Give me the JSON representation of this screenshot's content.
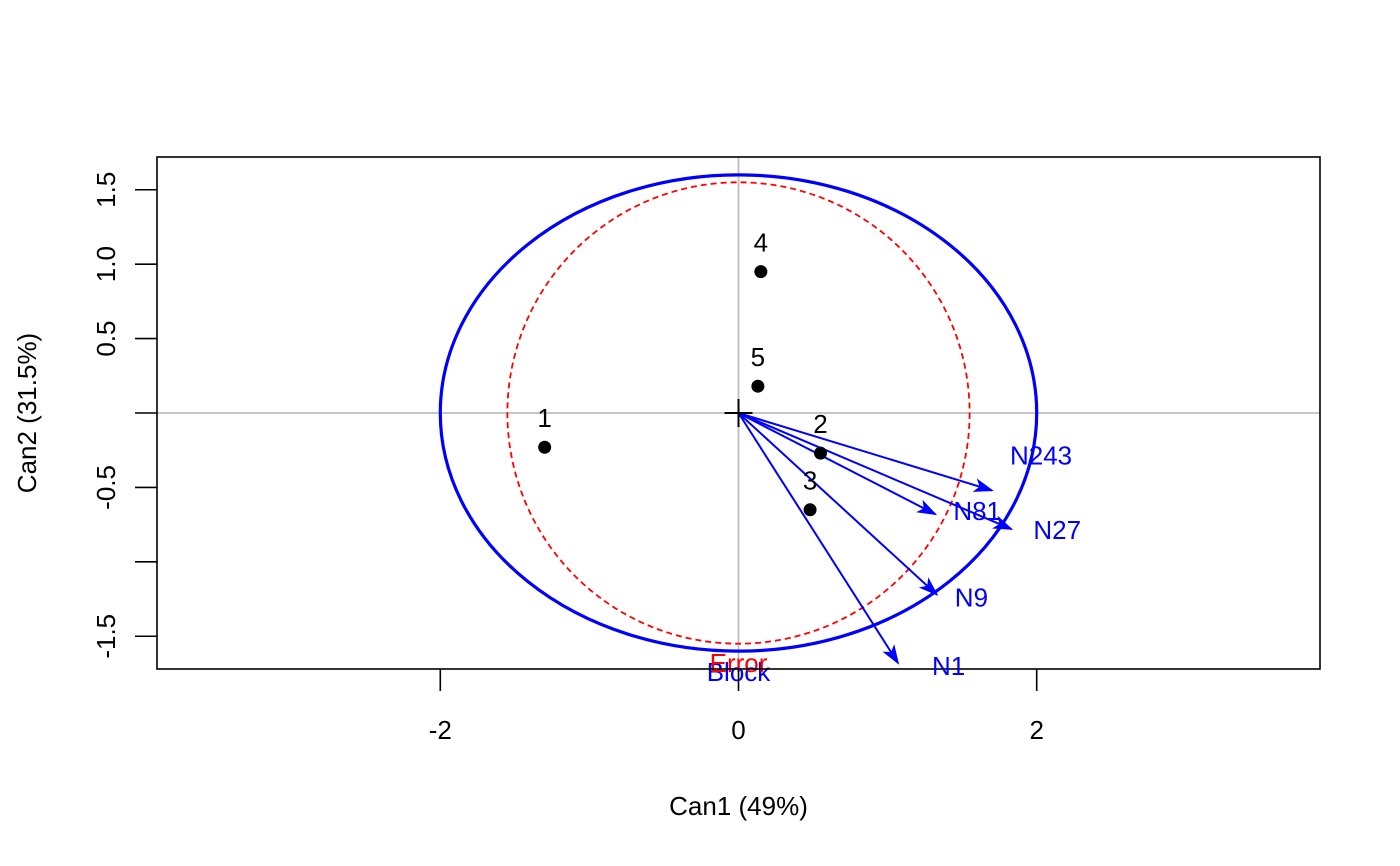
{
  "chart_data": {
    "type": "scatter",
    "title": "",
    "xlabel": "Can1 (49%)",
    "ylabel": "Can2 (31.5%)",
    "xlim": [
      -3.9,
      3.9
    ],
    "ylim": [
      -1.72,
      1.72
    ],
    "x_ticks": [
      {
        "value": -2,
        "label": "-2"
      },
      {
        "value": 0,
        "label": "0"
      },
      {
        "value": 2,
        "label": "2"
      }
    ],
    "y_ticks": [
      {
        "value": 1.5,
        "label": "1.5"
      },
      {
        "value": 1.0,
        "label": "1.0"
      },
      {
        "value": 0.5,
        "label": "0.5"
      },
      {
        "value": 0,
        "label": ""
      },
      {
        "value": -0.5,
        "label": "-0.5"
      },
      {
        "value": -1.0,
        "label": ""
      },
      {
        "value": -1.5,
        "label": "-1.5"
      }
    ],
    "reference_lines": {
      "x": 0,
      "y": 0,
      "color": "#bebebe"
    },
    "origin_marker": "+",
    "points": [
      {
        "label": "1",
        "x": -1.3,
        "y": -0.23
      },
      {
        "label": "2",
        "x": 0.55,
        "y": -0.27
      },
      {
        "label": "3",
        "x": 0.48,
        "y": -0.65
      },
      {
        "label": "4",
        "x": 0.15,
        "y": 0.95
      },
      {
        "label": "5",
        "x": 0.13,
        "y": 0.18
      }
    ],
    "vectors": [
      {
        "label": "N1",
        "x": 1.07,
        "y": -1.68
      },
      {
        "label": "N9",
        "x": 1.33,
        "y": -1.22
      },
      {
        "label": "N27",
        "x": 1.83,
        "y": -0.78
      },
      {
        "label": "N81",
        "x": 1.32,
        "y": -0.68
      },
      {
        "label": "N243",
        "x": 1.7,
        "y": -0.52
      }
    ],
    "vector_color": "#0000ff",
    "ellipses": [
      {
        "label": "Block",
        "center": [
          0,
          0
        ],
        "rx": 2.0,
        "ry": 1.6,
        "color": "#0000ff",
        "style": "solid"
      },
      {
        "label": "Error",
        "center": [
          0,
          0
        ],
        "rx": 1.55,
        "ry": 1.55,
        "color": "#ff0000",
        "style": "dashed"
      }
    ]
  }
}
